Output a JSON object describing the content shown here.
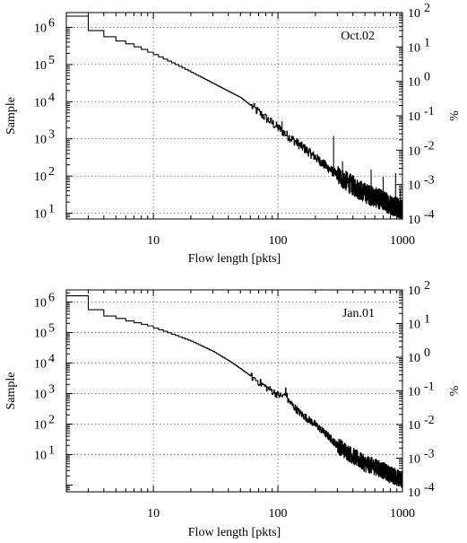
{
  "chart_data": [
    {
      "type": "line",
      "annotation": "Oct.02",
      "xlabel": "Flow length [pkts]",
      "ylabel": "Sample",
      "y2label": "%",
      "x_scale": "log",
      "y_scale": "log",
      "xlim": [
        2,
        1000
      ],
      "ylim": [
        7,
        2500000
      ],
      "y2lim": [
        0.0001,
        100
      ],
      "x_ticks": [
        10,
        100,
        1000
      ],
      "x_tick_labels": [
        "10",
        "100",
        "1000"
      ],
      "y_ticks": [
        10,
        100,
        1000,
        10000,
        100000,
        1000000
      ],
      "y_tick_bases": [
        "10",
        "10",
        "10",
        "10",
        "10",
        "10"
      ],
      "y_tick_exps": [
        "1",
        "2",
        "3",
        "4",
        "5",
        "6"
      ],
      "y2_ticks": [
        0.0001,
        0.001,
        0.01,
        0.1,
        1,
        10,
        100
      ],
      "y2_tick_bases": [
        "10",
        "10",
        "10",
        "10",
        "10",
        "10",
        "10"
      ],
      "y2_tick_exps": [
        "-4",
        "-3",
        "-2",
        "-1",
        "0",
        "1",
        "2"
      ],
      "grid": true,
      "series": [
        {
          "x": [
            2,
            3,
            4,
            5,
            6,
            7,
            8,
            9,
            10,
            12,
            15,
            20,
            30,
            40,
            50,
            60,
            70,
            80,
            100,
            120,
            150,
            200,
            250,
            300,
            400,
            500,
            600,
            700,
            800,
            900,
            1000
          ],
          "y": [
            2000000,
            820000,
            560000,
            430000,
            360000,
            300000,
            255000,
            215000,
            185000,
            140000,
            100000,
            62000,
            31000,
            19000,
            13000,
            8000,
            5200,
            3600,
            2000,
            1200,
            680,
            320,
            170,
            105,
            55,
            35,
            27,
            22,
            17,
            15,
            12
          ]
        }
      ],
      "spikes": [
        {
          "x": 108,
          "y": 3000
        },
        {
          "x": 280,
          "y": 1200
        },
        {
          "x": 330,
          "y": 250
        },
        {
          "x": 560,
          "y": 150
        },
        {
          "x": 700,
          "y": 95
        },
        {
          "x": 880,
          "y": 120
        },
        {
          "x": 960,
          "y": 45
        }
      ]
    },
    {
      "type": "line",
      "annotation": "Jan.01",
      "xlabel": "Flow length [pkts]",
      "ylabel": "Sample",
      "y2label": "%",
      "x_scale": "log",
      "y_scale": "log",
      "xlim": [
        2,
        1000
      ],
      "ylim": [
        0.6,
        2500000
      ],
      "y2lim": [
        0.0001,
        100
      ],
      "x_ticks": [
        10,
        100,
        1000
      ],
      "x_tick_labels": [
        "10",
        "100",
        "1000"
      ],
      "y_ticks": [
        10,
        100,
        1000,
        10000,
        100000,
        1000000
      ],
      "y_tick_bases": [
        "10",
        "10",
        "10",
        "10",
        "10",
        "10"
      ],
      "y_tick_exps": [
        "1",
        "2",
        "3",
        "4",
        "5",
        "6"
      ],
      "y2_ticks": [
        0.0001,
        0.001,
        0.01,
        0.1,
        1,
        10,
        100
      ],
      "y2_tick_bases": [
        "10",
        "10",
        "10",
        "10",
        "10",
        "10",
        "10"
      ],
      "y2_tick_exps": [
        "-4",
        "-3",
        "-2",
        "-1",
        "0",
        "1",
        "2"
      ],
      "grid": true,
      "series": [
        {
          "x": [
            2,
            3,
            4,
            5,
            6,
            7,
            8,
            9,
            10,
            12,
            15,
            20,
            30,
            40,
            50,
            60,
            70,
            80,
            90,
            100,
            110,
            115,
            120,
            130,
            150,
            200,
            250,
            300,
            400,
            500,
            600,
            700,
            800,
            900,
            1000
          ],
          "y": [
            1600000,
            560000,
            350000,
            290000,
            240000,
            210000,
            185000,
            165000,
            140000,
            110000,
            80000,
            52000,
            24000,
            12000,
            6500,
            3800,
            2400,
            1600,
            1200,
            900,
            800,
            1200,
            600,
            420,
            230,
            95,
            42,
            20,
            9,
            5,
            4,
            3,
            2.2,
            1.8,
            1.5
          ]
        }
      ],
      "spikes": []
    }
  ]
}
